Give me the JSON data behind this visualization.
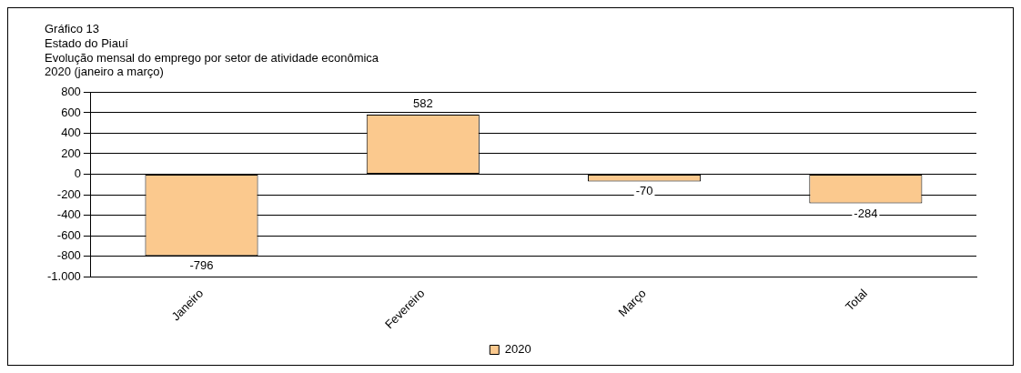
{
  "chart_data": {
    "type": "bar",
    "title": "Gráfico 13",
    "subtitle": "Estado do Piauí\nEvolução mensal do emprego por setor de atividade econômica\n2020 (janeiro a março)",
    "categories": [
      "Janeiro",
      "Fevereiro",
      "Março",
      "Total"
    ],
    "series": [
      {
        "name": "2020",
        "color": "#fbc98e",
        "values": [
          -796,
          582,
          -70,
          -284
        ]
      }
    ],
    "ylim": [
      -1000,
      800
    ],
    "yticks": [
      {
        "value": -1000,
        "label": "-1.000"
      },
      -800,
      -600,
      -400,
      -200,
      0,
      200,
      400,
      600,
      800
    ],
    "grid": "y",
    "legend": "bottom",
    "data_labels": true
  }
}
